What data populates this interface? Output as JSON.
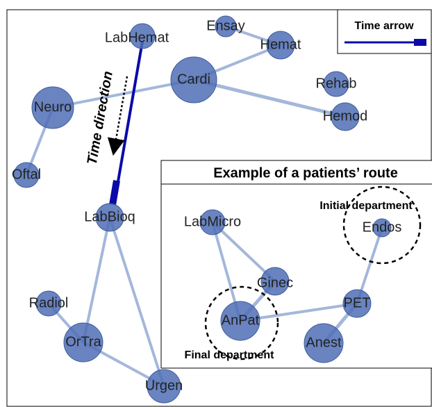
{
  "legend": {
    "title": "Time arrow"
  },
  "annotation": "Time direction",
  "nodes": [
    {
      "label": "LabHemat"
    },
    {
      "label": "Ensay"
    },
    {
      "label": "Hemat"
    },
    {
      "label": "Cardi"
    },
    {
      "label": "Rehab"
    },
    {
      "label": "Hemod"
    },
    {
      "label": "Neuro"
    },
    {
      "label": "Oftal"
    },
    {
      "label": "LabBioq"
    },
    {
      "label": "Radiol"
    },
    {
      "label": "OrTra"
    },
    {
      "label": "Urgen"
    }
  ],
  "inset": {
    "title": "Example of a patients’ route",
    "initial_label": "Initial department",
    "final_label": "Final department",
    "nodes": [
      {
        "label": "LabMicro"
      },
      {
        "label": "Endos"
      },
      {
        "label": "Ginec"
      },
      {
        "label": "PET"
      },
      {
        "label": "AnPat"
      },
      {
        "label": "Anest"
      }
    ]
  }
}
